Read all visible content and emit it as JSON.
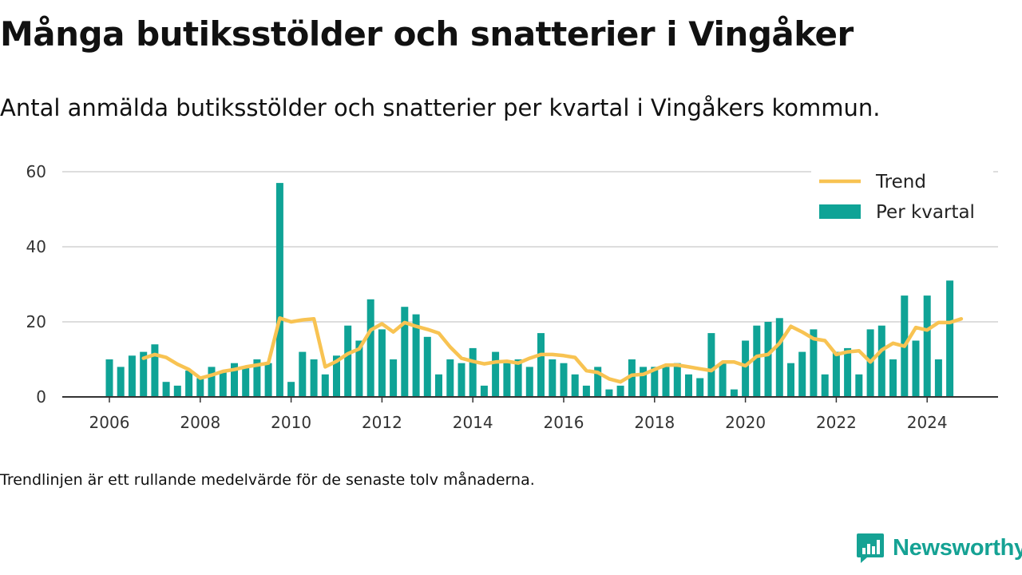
{
  "title": "Många butiksstölder och snatterier i Vingåker",
  "subtitle": "Antal anmälda butiksstölder och snatterier per kvartal i Vingåkers kommun.",
  "note": "Trendlinjen är ett rullande medelvärde för de senaste tolv månaderna.",
  "brand": {
    "name": "Newsworthy",
    "color": "#15a294",
    "icon": "newsworthy-logo-icon"
  },
  "colors": {
    "bars": "#0fa396",
    "trend": "#f8c352",
    "grid": "#dddddd",
    "axis": "#333333"
  },
  "chart_data": {
    "type": "bar",
    "xlim": [
      2005.5,
      2025.5
    ],
    "ylim": [
      0,
      60
    ],
    "y_ticks": [
      0,
      20,
      40,
      60
    ],
    "x_ticks": [
      2006,
      2008,
      2010,
      2012,
      2014,
      2016,
      2018,
      2020,
      2022,
      2024
    ],
    "grid": true,
    "legend_position": "top-right",
    "legend": [
      "Trend",
      "Per kvartal"
    ],
    "start": [
      2006,
      1
    ],
    "series": [
      {
        "name": "Per kvartal",
        "type": "bar",
        "values": [
          10,
          8,
          11,
          12,
          14,
          4,
          3,
          7,
          5,
          8,
          7,
          9,
          8,
          10,
          9,
          57,
          4,
          12,
          10,
          6,
          11,
          19,
          15,
          26,
          18,
          10,
          24,
          22,
          16,
          6,
          10,
          9,
          13,
          3,
          12,
          9,
          10,
          8,
          17,
          10,
          9,
          6,
          3,
          8,
          2,
          3,
          10,
          8,
          8,
          8,
          9,
          6,
          5,
          17,
          9,
          2,
          15,
          19,
          20,
          21,
          9,
          12,
          18,
          6,
          12,
          13,
          6,
          18,
          19,
          10,
          27,
          15,
          27,
          10,
          31
        ]
      },
      {
        "name": "Trend",
        "type": "line",
        "start": [
          2006,
          4
        ],
        "values": [
          10.3,
          11.3,
          10.5,
          8.7,
          7.3,
          5.0,
          5.8,
          6.8,
          7.3,
          8.0,
          8.5,
          9.0,
          21.0,
          20.0,
          20.5,
          20.8,
          8.0,
          9.5,
          11.5,
          12.8,
          17.8,
          19.5,
          17.3,
          19.8,
          18.8,
          18.0,
          17.0,
          13.3,
          10.3,
          9.5,
          8.8,
          9.3,
          9.5,
          9.0,
          10.3,
          11.3,
          11.3,
          11.0,
          10.5,
          7.0,
          6.5,
          4.8,
          4.0,
          5.8,
          6.0,
          7.3,
          8.5,
          8.5,
          8.0,
          7.5,
          7.0,
          9.3,
          9.3,
          8.3,
          10.8,
          11.3,
          14.3,
          18.8,
          17.3,
          15.5,
          15.0,
          11.3,
          12.0,
          12.3,
          9.3,
          12.5,
          14.3,
          13.5,
          18.5,
          17.8,
          19.8,
          19.8,
          20.8
        ]
      }
    ]
  }
}
